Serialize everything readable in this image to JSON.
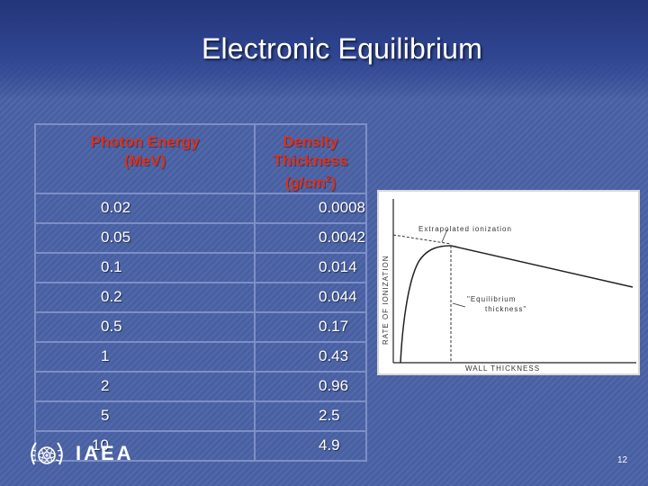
{
  "slide": {
    "title": "Electronic Equilibrium",
    "page_number": "12"
  },
  "table": {
    "headers": {
      "col1_line1": "Photon Energy",
      "col1_line2": "(MeV)",
      "col2_line1": "Density Thickness",
      "col2_line2_prefix": "(g/cm",
      "col2_sup": "2",
      "col2_line2_suffix": ")"
    },
    "rows": [
      {
        "energy": "0.02",
        "thickness": "0.0008"
      },
      {
        "energy": "0.05",
        "thickness": "0.0042"
      },
      {
        "energy": "0.1",
        "thickness": "0.014"
      },
      {
        "energy": "0.2",
        "thickness": "0.044"
      },
      {
        "energy": "0.5",
        "thickness": "0.17"
      },
      {
        "energy": "1",
        "thickness": "0.43"
      },
      {
        "energy": "2",
        "thickness": "0.96"
      },
      {
        "energy": "5",
        "thickness": "2.5"
      },
      {
        "energy": "10",
        "thickness": "4.9"
      }
    ]
  },
  "figure": {
    "y_label": "RATE OF IONIZATION",
    "x_label": "WALL THICKNESS",
    "annotation_extrapolated": "Extrapolated ionization",
    "annotation_equilibrium_1": "\"Equilibrium",
    "annotation_equilibrium_2": "thickness\""
  },
  "footer": {
    "org": "IAEA"
  },
  "colors": {
    "background": "#4a62a6",
    "header_text": "#d9321e",
    "table_border": "#7d8fc8",
    "text": "#ffffff"
  }
}
